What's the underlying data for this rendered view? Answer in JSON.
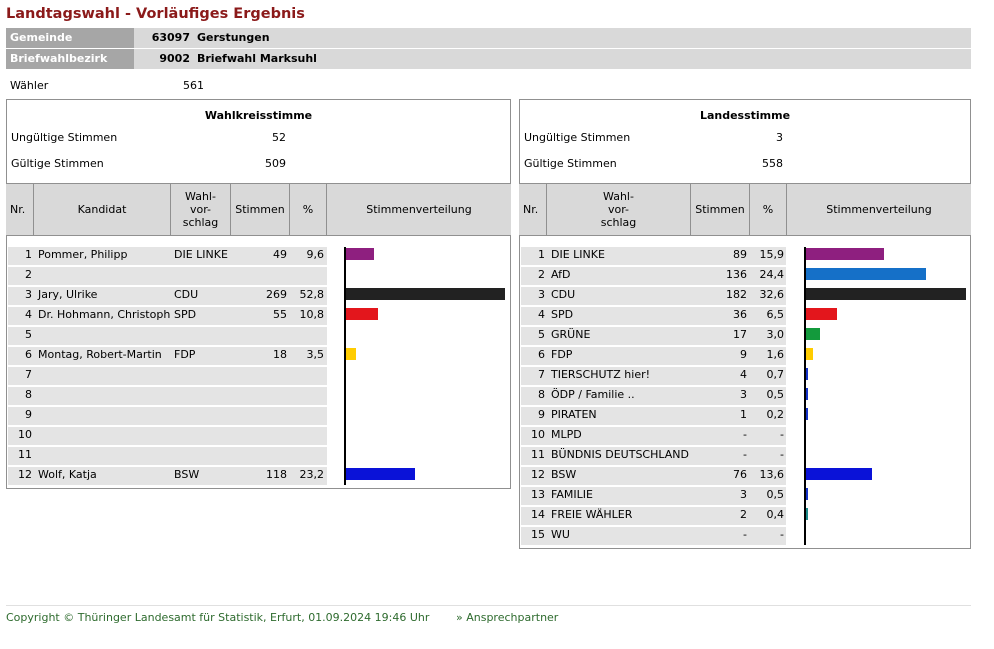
{
  "page_title": "Landtagswahl - Vorläufiges Ergebnis",
  "gemeinde": {
    "label": "Gemeinde",
    "code": "63097",
    "name": "Gerstungen"
  },
  "bezirk": {
    "label": "Briefwahlbezirk",
    "code": "9002",
    "name": "Briefwahl Marksuhl"
  },
  "waehler": {
    "label": "Wähler",
    "value": "561"
  },
  "colors": {
    "DIE LINKE": "#8e1f7f",
    "AfD": "#1570c8",
    "CDU": "#222222",
    "SPD": "#e3161c",
    "GRÜNE": "#139a3c",
    "FDP": "#ffcc00",
    "TIERSCHUTZ hier!": "#1432c8",
    "ÖDP / Familie ..": "#1432c8",
    "PIRATEN": "#1432c8",
    "BSW": "#0a12d8",
    "FAMILIE": "#1432c8",
    "FREIE WÄHLER": "#1c8a8a"
  },
  "wahlkreis": {
    "title": "Wahlkreisstimme",
    "ungueltig_label": "Ungültige Stimmen",
    "ungueltig": "52",
    "gueltig_label": "Gültige Stimmen",
    "gueltig": "509",
    "headers": {
      "nr": "Nr.",
      "kandidat": "Kandidat",
      "vorschlag": "Wahl-\nvor-\nschlag",
      "stimmen": "Stimmen",
      "pct": "%",
      "verteilung": "Stimmenverteilung"
    },
    "rows": [
      {
        "nr": "1",
        "name": "Pommer, Philipp",
        "party": "DIE LINKE",
        "stimmen": "49",
        "pct": "9,6",
        "value": 9.6
      },
      {
        "nr": "2",
        "name": "",
        "party": "",
        "stimmen": "",
        "pct": "",
        "value": 0
      },
      {
        "nr": "3",
        "name": "Jary, Ulrike",
        "party": "CDU",
        "stimmen": "269",
        "pct": "52,8",
        "value": 52.8
      },
      {
        "nr": "4",
        "name": "Dr. Hohmann, Christoph",
        "party": "SPD",
        "stimmen": "55",
        "pct": "10,8",
        "value": 10.8
      },
      {
        "nr": "5",
        "name": "",
        "party": "",
        "stimmen": "",
        "pct": "",
        "value": 0
      },
      {
        "nr": "6",
        "name": "Montag, Robert-Martin",
        "party": "FDP",
        "stimmen": "18",
        "pct": "3,5",
        "value": 3.5
      },
      {
        "nr": "7",
        "name": "",
        "party": "",
        "stimmen": "",
        "pct": "",
        "value": 0
      },
      {
        "nr": "8",
        "name": "",
        "party": "",
        "stimmen": "",
        "pct": "",
        "value": 0
      },
      {
        "nr": "9",
        "name": "",
        "party": "",
        "stimmen": "",
        "pct": "",
        "value": 0
      },
      {
        "nr": "10",
        "name": "",
        "party": "",
        "stimmen": "",
        "pct": "",
        "value": 0
      },
      {
        "nr": "11",
        "name": "",
        "party": "",
        "stimmen": "",
        "pct": "",
        "value": 0
      },
      {
        "nr": "12",
        "name": "Wolf, Katja",
        "party": "BSW",
        "stimmen": "118",
        "pct": "23,2",
        "value": 23.2
      }
    ]
  },
  "landes": {
    "title": "Landesstimme",
    "ungueltig_label": "Ungültige Stimmen",
    "ungueltig": "3",
    "gueltig_label": "Gültige Stimmen",
    "gueltig": "558",
    "headers": {
      "nr": "Nr.",
      "vorschlag": "Wahl-\nvor-\nschlag",
      "stimmen": "Stimmen",
      "pct": "%",
      "verteilung": "Stimmenverteilung"
    },
    "rows": [
      {
        "nr": "1",
        "party": "DIE LINKE",
        "stimmen": "89",
        "pct": "15,9",
        "value": 15.9
      },
      {
        "nr": "2",
        "party": "AfD",
        "stimmen": "136",
        "pct": "24,4",
        "value": 24.4
      },
      {
        "nr": "3",
        "party": "CDU",
        "stimmen": "182",
        "pct": "32,6",
        "value": 32.6
      },
      {
        "nr": "4",
        "party": "SPD",
        "stimmen": "36",
        "pct": "6,5",
        "value": 6.5
      },
      {
        "nr": "5",
        "party": "GRÜNE",
        "stimmen": "17",
        "pct": "3,0",
        "value": 3.0
      },
      {
        "nr": "6",
        "party": "FDP",
        "stimmen": "9",
        "pct": "1,6",
        "value": 1.6
      },
      {
        "nr": "7",
        "party": "TIERSCHUTZ hier!",
        "stimmen": "4",
        "pct": "0,7",
        "value": 0.7
      },
      {
        "nr": "8",
        "party": "ÖDP / Familie ..",
        "stimmen": "3",
        "pct": "0,5",
        "value": 0.5
      },
      {
        "nr": "9",
        "party": "PIRATEN",
        "stimmen": "1",
        "pct": "0,2",
        "value": 0.2
      },
      {
        "nr": "10",
        "party": "MLPD",
        "stimmen": "-",
        "pct": "-",
        "value": 0
      },
      {
        "nr": "11",
        "party": "BÜNDNIS DEUTSCHLAND",
        "stimmen": "-",
        "pct": "-",
        "value": 0
      },
      {
        "nr": "12",
        "party": "BSW",
        "stimmen": "76",
        "pct": "13,6",
        "value": 13.6
      },
      {
        "nr": "13",
        "party": "FAMILIE",
        "stimmen": "3",
        "pct": "0,5",
        "value": 0.5
      },
      {
        "nr": "14",
        "party": "FREIE WÄHLER",
        "stimmen": "2",
        "pct": "0,4",
        "value": 0.4
      },
      {
        "nr": "15",
        "party": "WU",
        "stimmen": "-",
        "pct": "-",
        "value": 0
      }
    ]
  },
  "footer": {
    "copyright": "Copyright © Thüringer Landesamt für Statistik, Erfurt, 01.09.2024 19:46 Uhr",
    "contact": "» Ansprechpartner"
  }
}
